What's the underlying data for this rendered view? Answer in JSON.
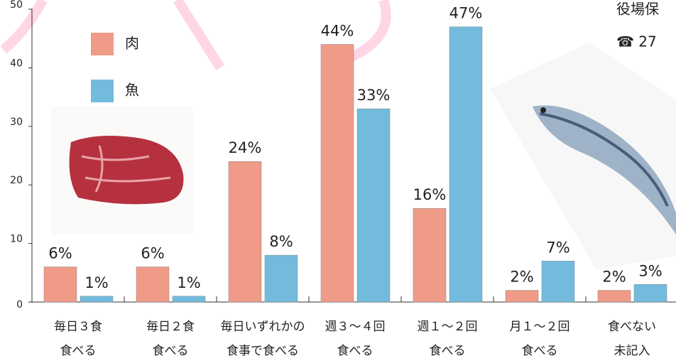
{
  "chart_data": {
    "type": "bar",
    "categories": [
      [
        "毎日３食",
        "食べる"
      ],
      [
        "毎日２食",
        "食べる"
      ],
      [
        "毎日いずれかの",
        "食事で食べる"
      ],
      [
        "週３～４回",
        "食べる"
      ],
      [
        "週１～２回",
        "食べる"
      ],
      [
        "月１～２回",
        "食べる"
      ],
      [
        "食べない",
        "未記入"
      ]
    ],
    "series": [
      {
        "name": "肉",
        "color": "#f09a88",
        "values": [
          6,
          6,
          24,
          44,
          16,
          2,
          2
        ],
        "value_labels": [
          "6%",
          "6%",
          "24%",
          "44%",
          "16%",
          "2%",
          "2%"
        ]
      },
      {
        "name": "魚",
        "color": "#72bbdd",
        "values": [
          1,
          1,
          8,
          33,
          47,
          7,
          3
        ],
        "value_labels": [
          "1%",
          "1%",
          "8%",
          "33%",
          "47%",
          "7%",
          "3%"
        ]
      }
    ],
    "ylim": [
      0,
      50
    ],
    "yticks": [
      0,
      10,
      20,
      30,
      40,
      50
    ],
    "annotations": [
      "役場保",
      "☎ 27"
    ]
  }
}
